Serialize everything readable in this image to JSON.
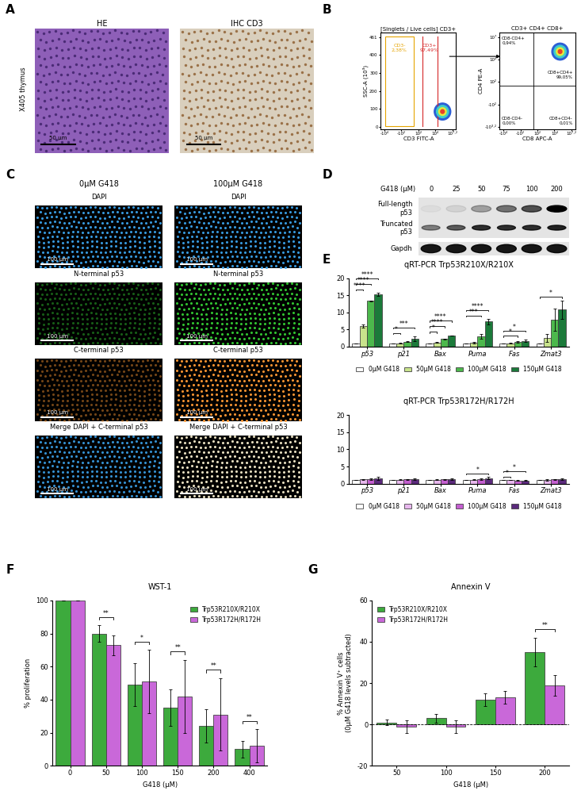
{
  "panels": {
    "A": {
      "letter": "A",
      "row_label": "X405 thymus",
      "images": [
        {
          "title": "HE",
          "scale_bar": "50 µm"
        },
        {
          "title": "IHC CD3",
          "scale_bar": "50 µm"
        }
      ]
    },
    "B": {
      "letter": "B",
      "plots": [
        {
          "title": "[Singlets / Live cells] CD3+",
          "xlabel": "CD3 FITC-A",
          "ylabel": "SSC-A (10³)",
          "xtick_labels": [
            "-10⁴",
            "-10²",
            "10²",
            "10⁴",
            "10⁷·²"
          ],
          "ytick_labels": [
            "0",
            "100",
            "200",
            "300",
            "400",
            "461"
          ],
          "gates": [
            {
              "label": "CD3-",
              "percent": "2,38%",
              "color": "#e6a400"
            },
            {
              "label": "CD3+",
              "percent": "97,49%",
              "color": "#d62728"
            }
          ]
        },
        {
          "title": "CD3+ CD4+ CD8+",
          "xlabel": "CD8 APC-A",
          "ylabel": "CD4 PE-A",
          "xtick_labels": [
            "-10⁴",
            "-10²",
            "10²",
            "10⁴",
            "10⁷·²"
          ],
          "ytick_labels": [
            "-10³·²",
            "-10²",
            "10²",
            "10⁴",
            "10⁷"
          ],
          "quadrants": [
            {
              "label": "CD8-CD4+",
              "percent": "0,94%"
            },
            {
              "label": "CD8+CD4+",
              "percent": "99,05%"
            },
            {
              "label": "CD8-CD4-",
              "percent": "0,00%"
            },
            {
              "label": "CD8+CD4-",
              "percent": "0,01%"
            }
          ]
        }
      ]
    },
    "C": {
      "letter": "C",
      "columns": [
        "0µM G418",
        "100µM G418"
      ],
      "scale_bar": "100 µm",
      "rows": [
        {
          "label": "DAPI",
          "color": "#3aa0e8"
        },
        {
          "label": "N-terminal p53",
          "color": "#33cc33"
        },
        {
          "label": "C-terminal p53",
          "color": "#ff9933"
        },
        {
          "label": "Merge DAPI + C-terminal p53",
          "color": "#f2e8c8"
        }
      ]
    },
    "D": {
      "letter": "D",
      "title": "G418 (µM)",
      "lanes": [
        "0",
        "25",
        "50",
        "75",
        "100",
        "200"
      ],
      "bands": [
        "Full-length\np53",
        "Truncated\np53",
        "Gapdh"
      ]
    }
  },
  "chart_data": [
    {
      "panel": "E",
      "type": "bar",
      "title": "qRT-PCR Trp53R210X/R210X",
      "categories": [
        "p53",
        "p21",
        "Bax",
        "Puma",
        "Fas",
        "Zmat3"
      ],
      "ylim": [
        0,
        20
      ],
      "yticks": [
        0,
        5,
        10,
        15,
        20
      ],
      "legend": "bottom",
      "series": [
        {
          "name": "0µM G418",
          "color": "#ffffff",
          "values": [
            1,
            1,
            1,
            1,
            1,
            1
          ],
          "errors": [
            0,
            0,
            0,
            0,
            0,
            0
          ]
        },
        {
          "name": "50µM G418",
          "color": "#c8e38c",
          "values": [
            6.0,
            1.0,
            1.2,
            1.2,
            1.0,
            2.5
          ],
          "errors": [
            0.5,
            0.05,
            0.1,
            0.2,
            0.05,
            1.2
          ]
        },
        {
          "name": "100µM G418",
          "color": "#4cb84c",
          "values": [
            13.3,
            1.4,
            2.2,
            3.0,
            1.3,
            7.8
          ],
          "errors": [
            0.2,
            0.1,
            0.1,
            0.6,
            0.2,
            3.3
          ]
        },
        {
          "name": "150µM G418",
          "color": "#1b7a3a",
          "values": [
            15.3,
            2.3,
            3.2,
            7.3,
            1.7,
            10.8
          ],
          "errors": [
            0.4,
            0.6,
            0.1,
            0.8,
            0.4,
            2.7
          ]
        }
      ],
      "significance": [
        {
          "category": "p53",
          "series": "50µM G418",
          "label": "****"
        },
        {
          "category": "p53",
          "series": "100µM G418",
          "label": "****"
        },
        {
          "category": "p53",
          "series": "150µM G418",
          "label": "****"
        },
        {
          "category": "p21",
          "series": "50µM G418",
          "label": "*"
        },
        {
          "category": "p21",
          "series": "150µM G418",
          "label": "***"
        },
        {
          "category": "Bax",
          "series": "50µM G418",
          "label": "*"
        },
        {
          "category": "Bax",
          "series": "100µM G418",
          "label": "****"
        },
        {
          "category": "Bax",
          "series": "150µM G418",
          "label": "****"
        },
        {
          "category": "Puma",
          "series": "100µM G418",
          "label": "***"
        },
        {
          "category": "Puma",
          "series": "150µM G418",
          "label": "****"
        },
        {
          "category": "Fas",
          "series": "100µM G418",
          "label": "*"
        },
        {
          "category": "Fas",
          "series": "150µM G418",
          "label": "*"
        },
        {
          "category": "Zmat3",
          "series": "150µM G418",
          "label": "*"
        }
      ]
    },
    {
      "type": "bar",
      "title": "qRT-PCR Trp53R172H/R172H",
      "categories": [
        "p53",
        "p21",
        "Bax",
        "Puma",
        "Fas",
        "Zmat3"
      ],
      "ylim": [
        0,
        20
      ],
      "yticks": [
        0,
        5,
        10,
        15,
        20
      ],
      "legend": "bottom",
      "series": [
        {
          "name": "0µM G418",
          "color": "#ffffff",
          "values": [
            1,
            1,
            1,
            1,
            1,
            1
          ],
          "errors": [
            0,
            0,
            0,
            0,
            0,
            0
          ]
        },
        {
          "name": "50µM G418",
          "color": "#e8b8ee",
          "values": [
            1.2,
            1.1,
            1.1,
            1.1,
            1.0,
            1.1
          ],
          "errors": [
            0.2,
            0.1,
            0.1,
            0.1,
            0.05,
            0.2
          ]
        },
        {
          "name": "100µM G418",
          "color": "#c45fd0",
          "values": [
            1.3,
            1.2,
            1.2,
            1.3,
            0.9,
            1.2
          ],
          "errors": [
            0.3,
            0.2,
            0.2,
            0.2,
            0.05,
            0.2
          ]
        },
        {
          "name": "150µM G418",
          "color": "#5b2a7c",
          "values": [
            1.5,
            1.3,
            1.3,
            1.6,
            0.9,
            1.3
          ],
          "errors": [
            0.4,
            0.3,
            0.3,
            0.3,
            0.05,
            0.3
          ]
        }
      ],
      "significance": [
        {
          "category": "Puma",
          "series": "150µM G418",
          "label": "*"
        },
        {
          "category": "Fas",
          "series": "50µM G418",
          "label": "*"
        },
        {
          "category": "Fas",
          "series": "150µM G418",
          "label": "*"
        }
      ]
    },
    {
      "panel": "F",
      "type": "bar",
      "title": "WST-1",
      "xlabel": "G418 (µM)",
      "ylabel": "% proliferation",
      "categories": [
        "0",
        "50",
        "100",
        "150",
        "200",
        "400"
      ],
      "ylim": [
        0,
        100
      ],
      "yticks": [
        0,
        20,
        40,
        60,
        80,
        100
      ],
      "legend": "upper right",
      "series": [
        {
          "name": "Trp53R210X/R210X",
          "color": "#3daa3d",
          "values": [
            100,
            80,
            49,
            35,
            24,
            10
          ],
          "errors": [
            0,
            5,
            13,
            11,
            10,
            5
          ]
        },
        {
          "name": "Trp53R172H/R172H",
          "color": "#c968d9",
          "values": [
            100,
            73,
            51,
            42,
            31,
            12
          ],
          "errors": [
            0,
            6,
            19,
            22,
            22,
            10
          ]
        }
      ],
      "significance": [
        {
          "category": "50",
          "label": "**"
        },
        {
          "category": "100",
          "label": "*"
        },
        {
          "category": "150",
          "label": "**"
        },
        {
          "category": "200",
          "label": "**"
        },
        {
          "category": "400",
          "label": "**"
        }
      ]
    },
    {
      "panel": "G",
      "type": "bar",
      "title": "Annexin V",
      "xlabel": "G418 (µM)",
      "ylabel": "% Annexin V⁺ cells\n(0µM G418 levels subtracted)",
      "categories": [
        "50",
        "100",
        "150",
        "200"
      ],
      "ylim": [
        -20,
        60
      ],
      "yticks": [
        -20,
        0,
        20,
        40,
        60
      ],
      "legend": "upper left",
      "reference_line": 0,
      "series": [
        {
          "name": "Trp53R210X/R210X",
          "color": "#3daa3d",
          "values": [
            1,
            3,
            12,
            35
          ],
          "errors": [
            1.5,
            2,
            3,
            7
          ]
        },
        {
          "name": "Trp53R172H/R172H",
          "color": "#c968d9",
          "values": [
            -1,
            -1,
            13,
            19
          ],
          "errors": [
            3,
            3,
            3,
            5
          ]
        }
      ],
      "significance": [
        {
          "category": "200",
          "label": "**"
        }
      ]
    }
  ]
}
